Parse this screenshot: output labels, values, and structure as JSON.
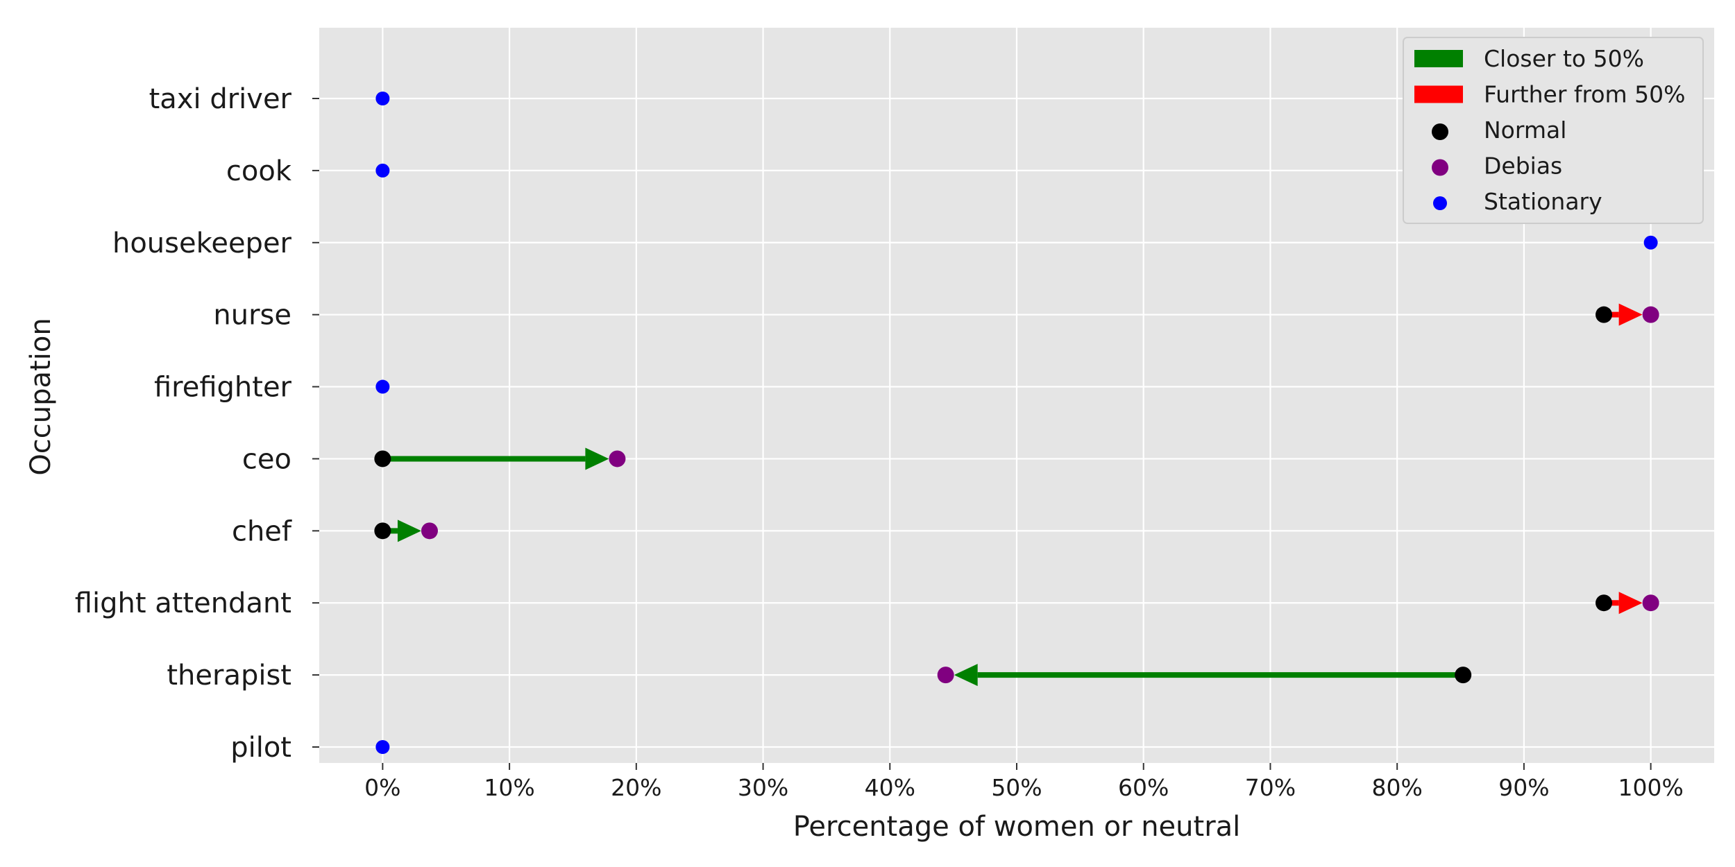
{
  "chart_data": {
    "type": "scatter",
    "xlabel": "Percentage of women or neutral",
    "ylabel": "Occupation",
    "xlim": [
      -5,
      105
    ],
    "x_ticks": [
      "0%",
      "10%",
      "20%",
      "30%",
      "40%",
      "50%",
      "60%",
      "70%",
      "80%",
      "90%",
      "100%"
    ],
    "x_tick_values": [
      0,
      10,
      20,
      30,
      40,
      50,
      60,
      70,
      80,
      90,
      100
    ],
    "grid": true,
    "legend_position": "top-right",
    "categories": [
      "taxi driver",
      "cook",
      "housekeeper",
      "nurse ",
      "firefighter",
      "ceo",
      "chef",
      "flight attendant",
      "therapist",
      "pilot "
    ],
    "points": [
      {
        "occupation": "taxi driver",
        "normal": 0,
        "debias": 0,
        "status": "stationary"
      },
      {
        "occupation": "cook",
        "normal": 0,
        "debias": 0,
        "status": "stationary"
      },
      {
        "occupation": "housekeeper",
        "normal": 100,
        "debias": 100,
        "status": "stationary"
      },
      {
        "occupation": "nurse ",
        "normal": 96.3,
        "debias": 100,
        "status": "further"
      },
      {
        "occupation": "firefighter",
        "normal": 0,
        "debias": 0,
        "status": "stationary"
      },
      {
        "occupation": "ceo",
        "normal": 0,
        "debias": 18.5,
        "status": "closer"
      },
      {
        "occupation": "chef",
        "normal": 0,
        "debias": 3.7,
        "status": "closer"
      },
      {
        "occupation": "flight attendant",
        "normal": 96.3,
        "debias": 100,
        "status": "further"
      },
      {
        "occupation": "therapist",
        "normal": 85.2,
        "debias": 44.4,
        "status": "closer"
      },
      {
        "occupation": "pilot ",
        "normal": 0,
        "debias": 0,
        "status": "stationary"
      }
    ],
    "legend": [
      {
        "label": "Closer to 50%",
        "kind": "arrow",
        "color": "#008000"
      },
      {
        "label": "Further from 50%",
        "kind": "arrow",
        "color": "#ff0000"
      },
      {
        "label": "Normal",
        "kind": "marker",
        "color": "#000000"
      },
      {
        "label": "Debias",
        "kind": "marker",
        "color": "#800080"
      },
      {
        "label": "Stationary",
        "kind": "marker",
        "color": "#0000ff"
      }
    ],
    "colors": {
      "closer": "#008000",
      "further": "#ff0000",
      "normal": "#000000",
      "debias": "#800080",
      "stationary": "#0000ff",
      "plot_background": "#e5e5e5",
      "grid": "#ffffff"
    }
  }
}
